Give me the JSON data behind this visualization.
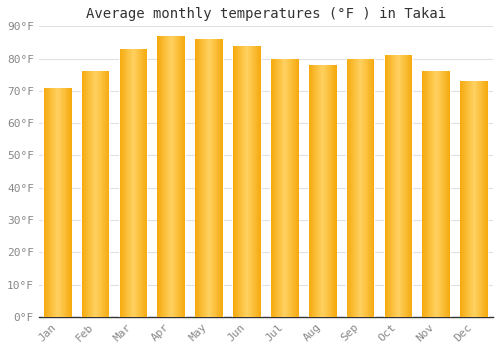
{
  "title": "Average monthly temperatures (°F ) in Takai",
  "months": [
    "Jan",
    "Feb",
    "Mar",
    "Apr",
    "May",
    "Jun",
    "Jul",
    "Aug",
    "Sep",
    "Oct",
    "Nov",
    "Dec"
  ],
  "values": [
    71,
    76,
    83,
    87,
    86,
    84,
    80,
    78,
    80,
    81,
    76,
    73
  ],
  "bar_color_edge": "#F5A800",
  "bar_color_center": "#FFD060",
  "background_color": "#FFFFFF",
  "grid_color": "#E0E0E0",
  "ylim": [
    0,
    90
  ],
  "yticks": [
    0,
    10,
    20,
    30,
    40,
    50,
    60,
    70,
    80,
    90
  ],
  "ytick_labels": [
    "0°F",
    "10°F",
    "20°F",
    "30°F",
    "40°F",
    "50°F",
    "60°F",
    "70°F",
    "80°F",
    "90°F"
  ],
  "title_fontsize": 10,
  "tick_fontsize": 8,
  "font_family": "monospace"
}
